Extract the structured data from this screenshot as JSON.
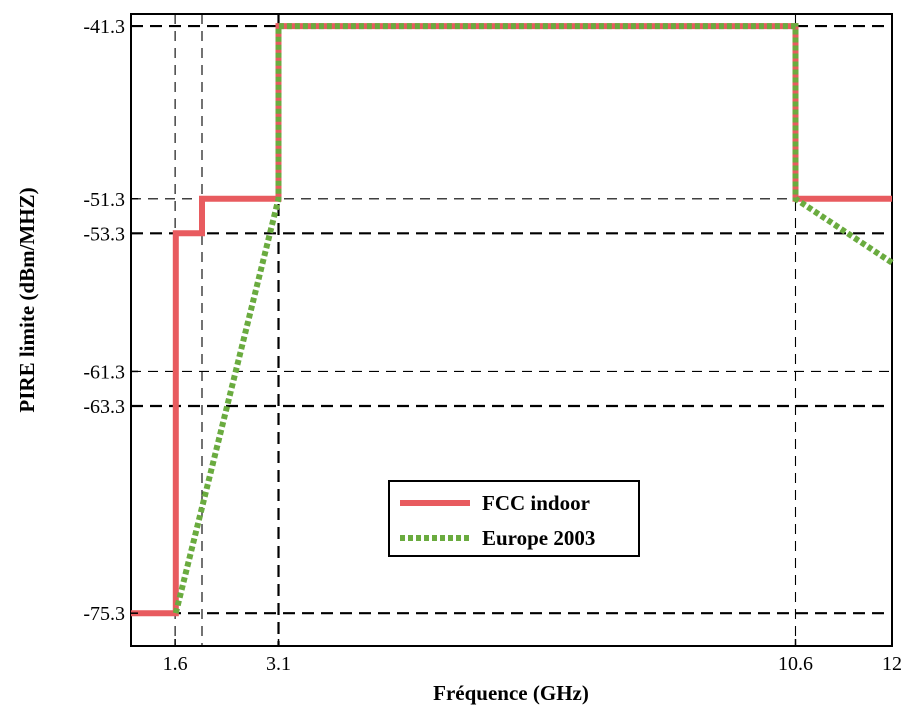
{
  "chart_data": {
    "type": "line",
    "xlabel": "Fréquence (GHz)",
    "ylabel": "PIRE limite (dBm/MHZ)",
    "xlim": [
      0.96,
      12
    ],
    "ylim": [
      -77.2,
      -40.6
    ],
    "x_ticks": [
      1.6,
      3.1,
      10.6,
      12
    ],
    "x_tick_labels": [
      "1.6",
      "3.1",
      "10.6",
      "12"
    ],
    "y_ticks": [
      -41.3,
      -51.3,
      -53.3,
      -61.3,
      -63.3,
      -75.3
    ],
    "y_tick_labels": [
      "-41.3",
      "-51.3",
      "-53.3",
      "-61.3",
      "-63.3",
      "-75.3"
    ],
    "grid": {
      "horizontal_heavy": [
        -41.3,
        -53.3,
        -63.3,
        -75.3
      ],
      "horizontal_light": [
        -51.3,
        -61.3
      ],
      "vertical_light": [
        1.6,
        1.99,
        10.6
      ],
      "vertical_heavy": [
        3.1
      ]
    },
    "legend_position": "lower-center",
    "series": [
      {
        "name": "FCC indoor",
        "color": "#e85b5f",
        "style": "solid",
        "x": [
          0.96,
          1.61,
          1.61,
          1.99,
          1.99,
          3.1,
          3.1,
          10.6,
          10.6,
          12
        ],
        "y": [
          -75.3,
          -75.3,
          -53.3,
          -53.3,
          -51.3,
          -51.3,
          -41.3,
          -41.3,
          -51.3,
          -51.3
        ]
      },
      {
        "name": "Europe 2003",
        "color": "#6aab3f",
        "style": "dotted",
        "x": [
          1.61,
          3.1,
          3.1,
          10.6,
          10.6,
          12
        ],
        "y": [
          -75.3,
          -51.3,
          -41.3,
          -41.3,
          -51.3,
          -55.0
        ]
      }
    ]
  }
}
